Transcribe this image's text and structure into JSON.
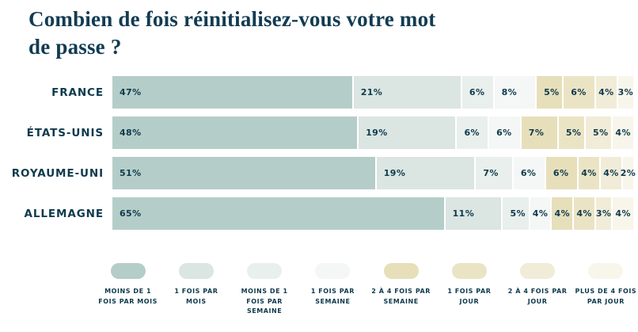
{
  "title_lines": [
    "Combien de fois réinitialisez-vous votre mot",
    "de passe ?"
  ],
  "colors": {
    "text_navy": "#123b52",
    "background": "#ffffff"
  },
  "chart_data": {
    "type": "bar",
    "stacked": true,
    "orientation": "horizontal",
    "title": "Combien de fois réinitialisez-vous votre mot de passe ?",
    "unit": "%",
    "value_suffix": "%",
    "legend_position": "bottom",
    "xlim": [
      0,
      100
    ],
    "grid": false,
    "categories": [
      "FRANCE",
      "ÉTATS-UNIS",
      "ROYAUME-UNI",
      "ALLEMAGNE"
    ],
    "series": [
      {
        "name": "MOINS DE 1 FOIS PAR MOIS",
        "color": "#b5cdc9",
        "values": [
          47,
          48,
          51,
          65
        ]
      },
      {
        "name": "1 FOIS PAR MOIS",
        "color": "#dbe5e2",
        "values": [
          21,
          19,
          19,
          11
        ]
      },
      {
        "name": "MOINS DE 1 FOIS PAR SEMAINE",
        "color": "#e9efec",
        "values": [
          6,
          6,
          7,
          5
        ]
      },
      {
        "name": "1 FOIS PAR SEMAINE",
        "color": "#f4f7f5",
        "values": [
          8,
          6,
          6,
          4
        ]
      },
      {
        "name": "2 À 4 FOIS PAR SEMAINE",
        "color": "#e6dfba",
        "values": [
          5,
          7,
          6,
          4
        ]
      },
      {
        "name": "1 FOIS PAR JOUR",
        "color": "#ebe4c4",
        "values": [
          6,
          5,
          4,
          4
        ]
      },
      {
        "name": "2 À 4 FOIS PAR JOUR",
        "color": "#f1ecd8",
        "values": [
          4,
          5,
          4,
          3
        ]
      },
      {
        "name": "PLUS DE 4 FOIS PAR JOUR",
        "color": "#f8f6eb",
        "values": [
          3,
          4,
          2,
          4
        ]
      }
    ]
  }
}
